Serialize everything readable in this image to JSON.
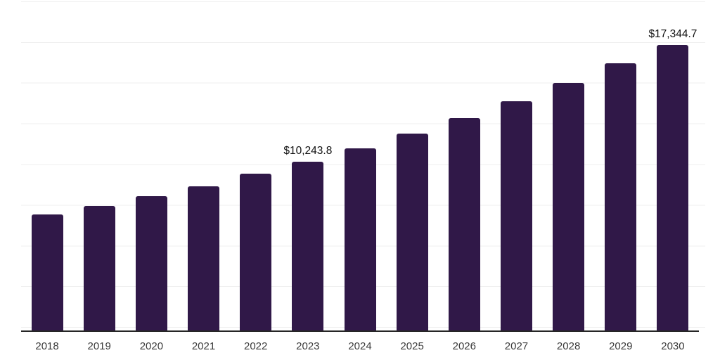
{
  "chart_data": {
    "type": "bar",
    "title": "",
    "xlabel": "",
    "ylabel": "",
    "categories": [
      "2018",
      "2019",
      "2020",
      "2021",
      "2022",
      "2023",
      "2024",
      "2025",
      "2026",
      "2027",
      "2028",
      "2029",
      "2030"
    ],
    "values": [
      7050,
      7560,
      8160,
      8780,
      9520,
      10243.8,
      11060,
      11960,
      12900,
      13940,
      15030,
      16250,
      17344.7
    ],
    "data_labels": [
      null,
      null,
      null,
      null,
      null,
      "$10,243.8",
      null,
      null,
      null,
      null,
      null,
      null,
      "$17,344.7"
    ],
    "ylim": [
      0,
      20000
    ],
    "grid": true,
    "legend": false,
    "bar_color": "#301848",
    "gridline_color": "#efefef",
    "axis_line_color": "#262626",
    "data_label_color": "#111111",
    "tick_label_color": "#3a3a3a"
  }
}
